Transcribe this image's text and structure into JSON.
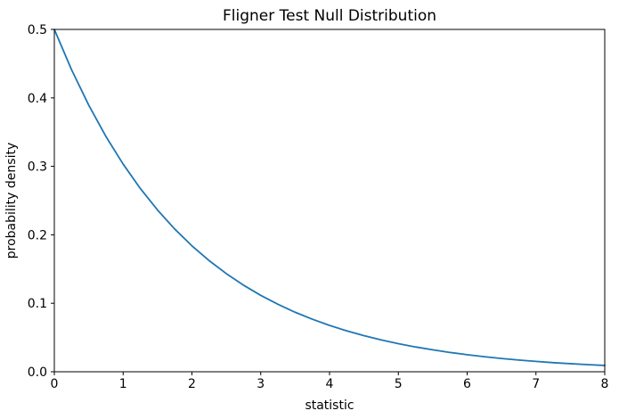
{
  "figure": {
    "background_color": "#ffffff",
    "spine_color": "#000000",
    "tick_color": "#000000"
  },
  "chart_data": {
    "type": "line",
    "title": "Fligner Test Null Distribution",
    "xlabel": "statistic",
    "ylabel": "probability density",
    "xlim": [
      0,
      8
    ],
    "ylim": [
      0.0,
      0.5
    ],
    "xticks": [
      "0",
      "1",
      "2",
      "3",
      "4",
      "5",
      "6",
      "7",
      "8"
    ],
    "xtick_values": [
      0,
      1,
      2,
      3,
      4,
      5,
      6,
      7,
      8
    ],
    "yticks": [
      "0.0",
      "0.1",
      "0.2",
      "0.3",
      "0.4",
      "0.5"
    ],
    "ytick_values": [
      0.0,
      0.1,
      0.2,
      0.3,
      0.4,
      0.5
    ],
    "grid": false,
    "legend_position": "none",
    "series": [
      {
        "color": "#1f77b4",
        "line_width": 1.8,
        "x": [
          0,
          0.25,
          0.5,
          0.75,
          1,
          1.25,
          1.5,
          1.75,
          2,
          2.25,
          2.5,
          2.75,
          3,
          3.25,
          3.5,
          3.75,
          4,
          4.25,
          4.5,
          4.75,
          5,
          5.25,
          5.5,
          5.75,
          6,
          6.25,
          6.5,
          6.75,
          7,
          7.25,
          7.5,
          7.75,
          8
        ],
        "y": [
          0.5,
          0.4412,
          0.3894,
          0.3436,
          0.3033,
          0.2676,
          0.2362,
          0.2084,
          0.1839,
          0.1623,
          0.1433,
          0.1264,
          0.1116,
          0.0985,
          0.0869,
          0.0767,
          0.0677,
          0.0597,
          0.0527,
          0.0465,
          0.041,
          0.0362,
          0.032,
          0.0282,
          0.0249,
          0.022,
          0.0194,
          0.0171,
          0.0151,
          0.0133,
          0.0118,
          0.0104,
          0.0092
        ]
      }
    ]
  }
}
